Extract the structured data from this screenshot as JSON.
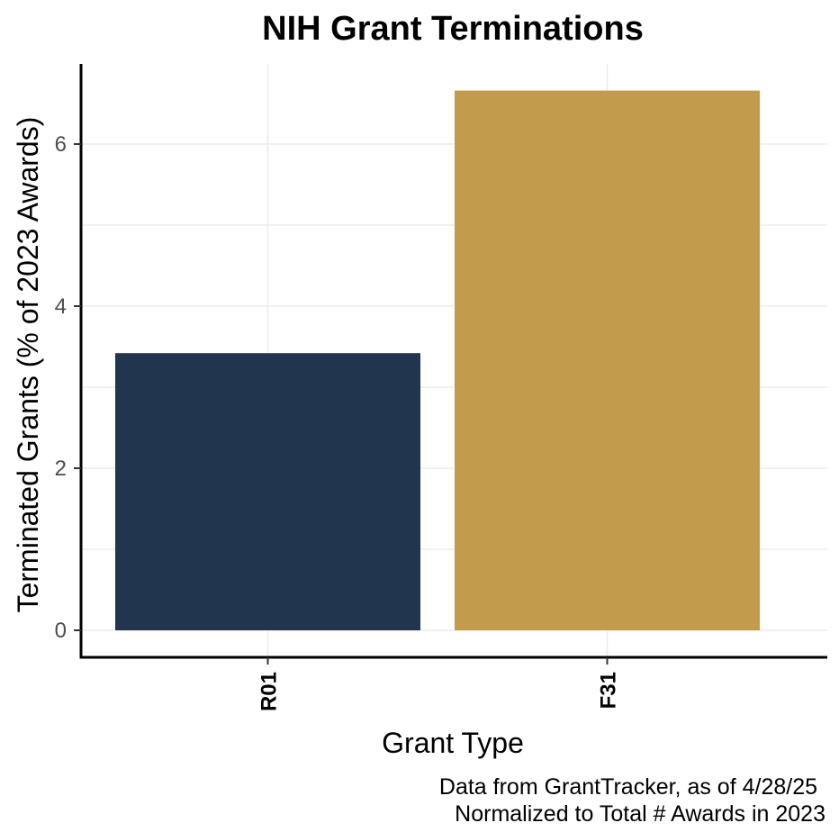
{
  "chart_data": {
    "type": "bar",
    "title": "NIH Grant Terminations",
    "xlabel": "Grant Type",
    "ylabel": "Terminated Grants (% of 2023 Awards)",
    "categories": [
      "R01",
      "F31"
    ],
    "values": [
      3.42,
      6.66
    ],
    "bar_colors": [
      "#21354f",
      "#c29b4d"
    ],
    "ylim": [
      0,
      7
    ],
    "yticks": [
      0,
      2,
      4,
      6
    ],
    "grid": true,
    "legend": "none",
    "caption": [
      "Data from GrantTracker, as of 4/28/25",
      "Normalized to Total # Awards in 2023"
    ]
  }
}
